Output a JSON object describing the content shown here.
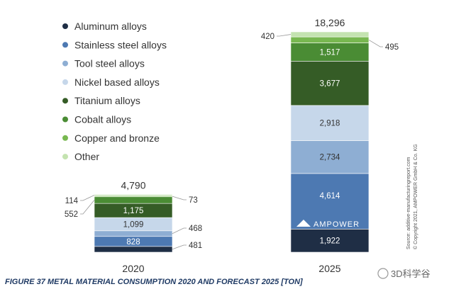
{
  "chart_data": {
    "type": "bar",
    "stacked": true,
    "categories": [
      "2020",
      "2025"
    ],
    "series": [
      {
        "name": "Aluminum alloys",
        "color": "#1f2e45",
        "values": [
          481,
          1922
        ]
      },
      {
        "name": "Stainless steel alloys",
        "color": "#4d79b2",
        "values": [
          828,
          4614
        ]
      },
      {
        "name": "Tool steel alloys",
        "color": "#8eaed3",
        "values": [
          468,
          2734
        ]
      },
      {
        "name": "Nickel based alloys",
        "color": "#c6d7ea",
        "values": [
          1099,
          2918
        ]
      },
      {
        "name": "Titanium alloys",
        "color": "#355c26",
        "values": [
          1175,
          3677
        ]
      },
      {
        "name": "Cobalt alloys",
        "color": "#4a8c34",
        "values": [
          552,
          1517
        ]
      },
      {
        "name": "Copper and bronze",
        "color": "#78b850",
        "values": [
          73,
          495
        ]
      },
      {
        "name": "Other",
        "color": "#c4e3b0",
        "values": [
          114,
          420
        ]
      }
    ],
    "display_values": [
      [
        "481",
        "1,922"
      ],
      [
        "828",
        "4,614"
      ],
      [
        "468",
        "2,734"
      ],
      [
        "1,099",
        "2,918"
      ],
      [
        "1,175",
        "3,677"
      ],
      [
        "552",
        "1,517"
      ],
      [
        "73",
        "495"
      ],
      [
        "114",
        "420"
      ]
    ],
    "totals": [
      "4,790",
      "18,296"
    ],
    "caption": "FIGURE 37 METAL MATERIAL CONSUMPTION 2020 AND FORECAST 2025 [TON]",
    "legend_position": "top-left",
    "grid": false,
    "axes_visible": false
  },
  "source_note": "Source: additive-manufacturingreport.com",
  "copyright_note": "© Copyright 2021, AMPOWER GmbH & Co. KG",
  "brand": "AMPOWER",
  "watermark": "3D科学谷"
}
